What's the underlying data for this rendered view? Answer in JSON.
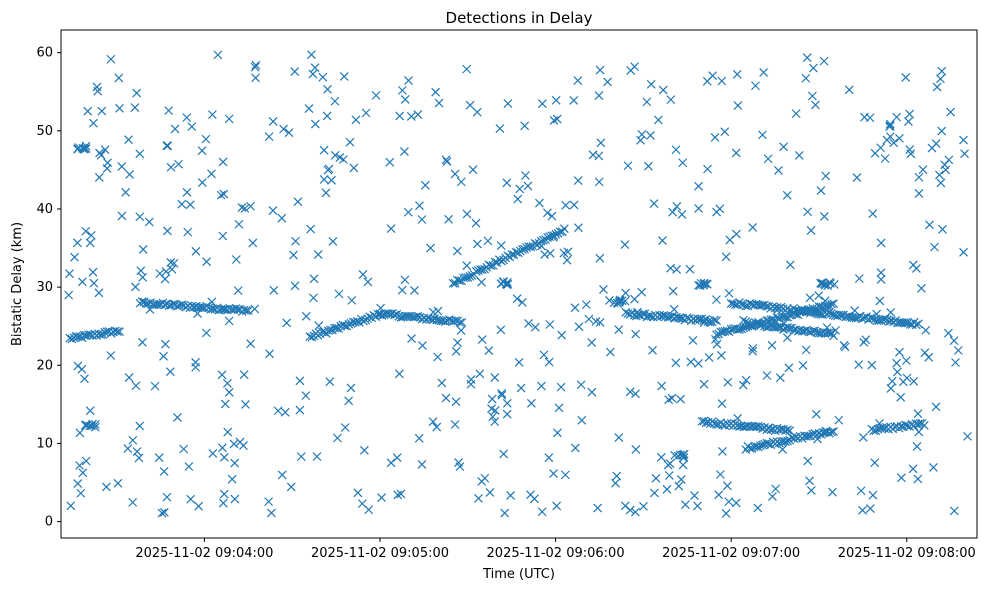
{
  "chart_data": {
    "type": "scatter",
    "title": "Detections in Delay",
    "xlabel": "Time (UTC)",
    "ylabel": "Bistatic Delay (km)",
    "x_range": [
      "2025-11-02T09:03:11",
      "2025-11-02T09:08:24"
    ],
    "ylim": [
      -2.1,
      62.9
    ],
    "x_ticks": [
      "2025-11-02 09:04:00",
      "2025-11-02 09:05:00",
      "2025-11-02 09:06:00",
      "2025-11-02 09:07:00",
      "2025-11-02 09:08:00"
    ],
    "y_ticks": [
      0,
      10,
      20,
      30,
      40,
      50,
      60
    ],
    "grid": false,
    "marker": "x",
    "color": "#1f77b4",
    "series": [
      {
        "name": "",
        "tracks": [
          {
            "x0": "2025-11-02T09:03:14",
            "x1": "2025-11-02T09:03:31",
            "y0": 23.4,
            "y1": 24.4
          },
          {
            "x0": "2025-11-02T09:03:38",
            "x1": "2025-11-02T09:04:15",
            "y0": 28.0,
            "y1": 27.0
          },
          {
            "x0": "2025-11-02T09:04:36",
            "x1": "2025-11-02T09:05:00",
            "y0": 23.6,
            "y1": 26.5
          },
          {
            "x0": "2025-11-02T09:05:00",
            "x1": "2025-11-02T09:05:28",
            "y0": 26.6,
            "y1": 25.5
          },
          {
            "x0": "2025-11-02T09:05:25",
            "x1": "2025-11-02T09:06:03",
            "y0": 30.5,
            "y1": 37.3
          },
          {
            "x0": "2025-11-02T09:06:24",
            "x1": "2025-11-02T09:06:55",
            "y0": 26.6,
            "y1": 25.6
          },
          {
            "x0": "2025-11-02T09:06:55",
            "x1": "2025-11-02T09:07:35",
            "y0": 24.0,
            "y1": 27.8
          },
          {
            "x0": "2025-11-02T09:07:00",
            "x1": "2025-11-02T09:08:04",
            "y0": 28.0,
            "y1": 25.3
          },
          {
            "x0": "2025-11-02T09:07:05",
            "x1": "2025-11-02T09:07:35",
            "y0": 25.4,
            "y1": 23.9
          },
          {
            "x0": "2025-11-02T09:06:50",
            "x1": "2025-11-02T09:07:20",
            "y0": 12.8,
            "y1": 11.6
          },
          {
            "x0": "2025-11-02T09:07:05",
            "x1": "2025-11-02T09:07:35",
            "y0": 9.4,
            "y1": 11.6
          },
          {
            "x0": "2025-11-02T09:07:48",
            "x1": "2025-11-02T09:08:06",
            "y0": 11.7,
            "y1": 12.5
          }
        ],
        "clusters": [
          {
            "x": "2025-11-02T09:03:18",
            "y": 47.8
          },
          {
            "x": "2025-11-02T09:06:22",
            "y": 28.1
          },
          {
            "x": "2025-11-02T09:06:42",
            "y": 8.4
          },
          {
            "x": "2025-11-02T09:06:50",
            "y": 30.3
          },
          {
            "x": "2025-11-02T09:07:32",
            "y": 30.4
          },
          {
            "x": "2025-11-02T09:03:21",
            "y": 12.3
          },
          {
            "x": "2025-11-02T09:05:42",
            "y": 30.5
          }
        ],
        "scatter_points": 620,
        "scatter_yrange": [
          1,
          60
        ]
      }
    ]
  }
}
